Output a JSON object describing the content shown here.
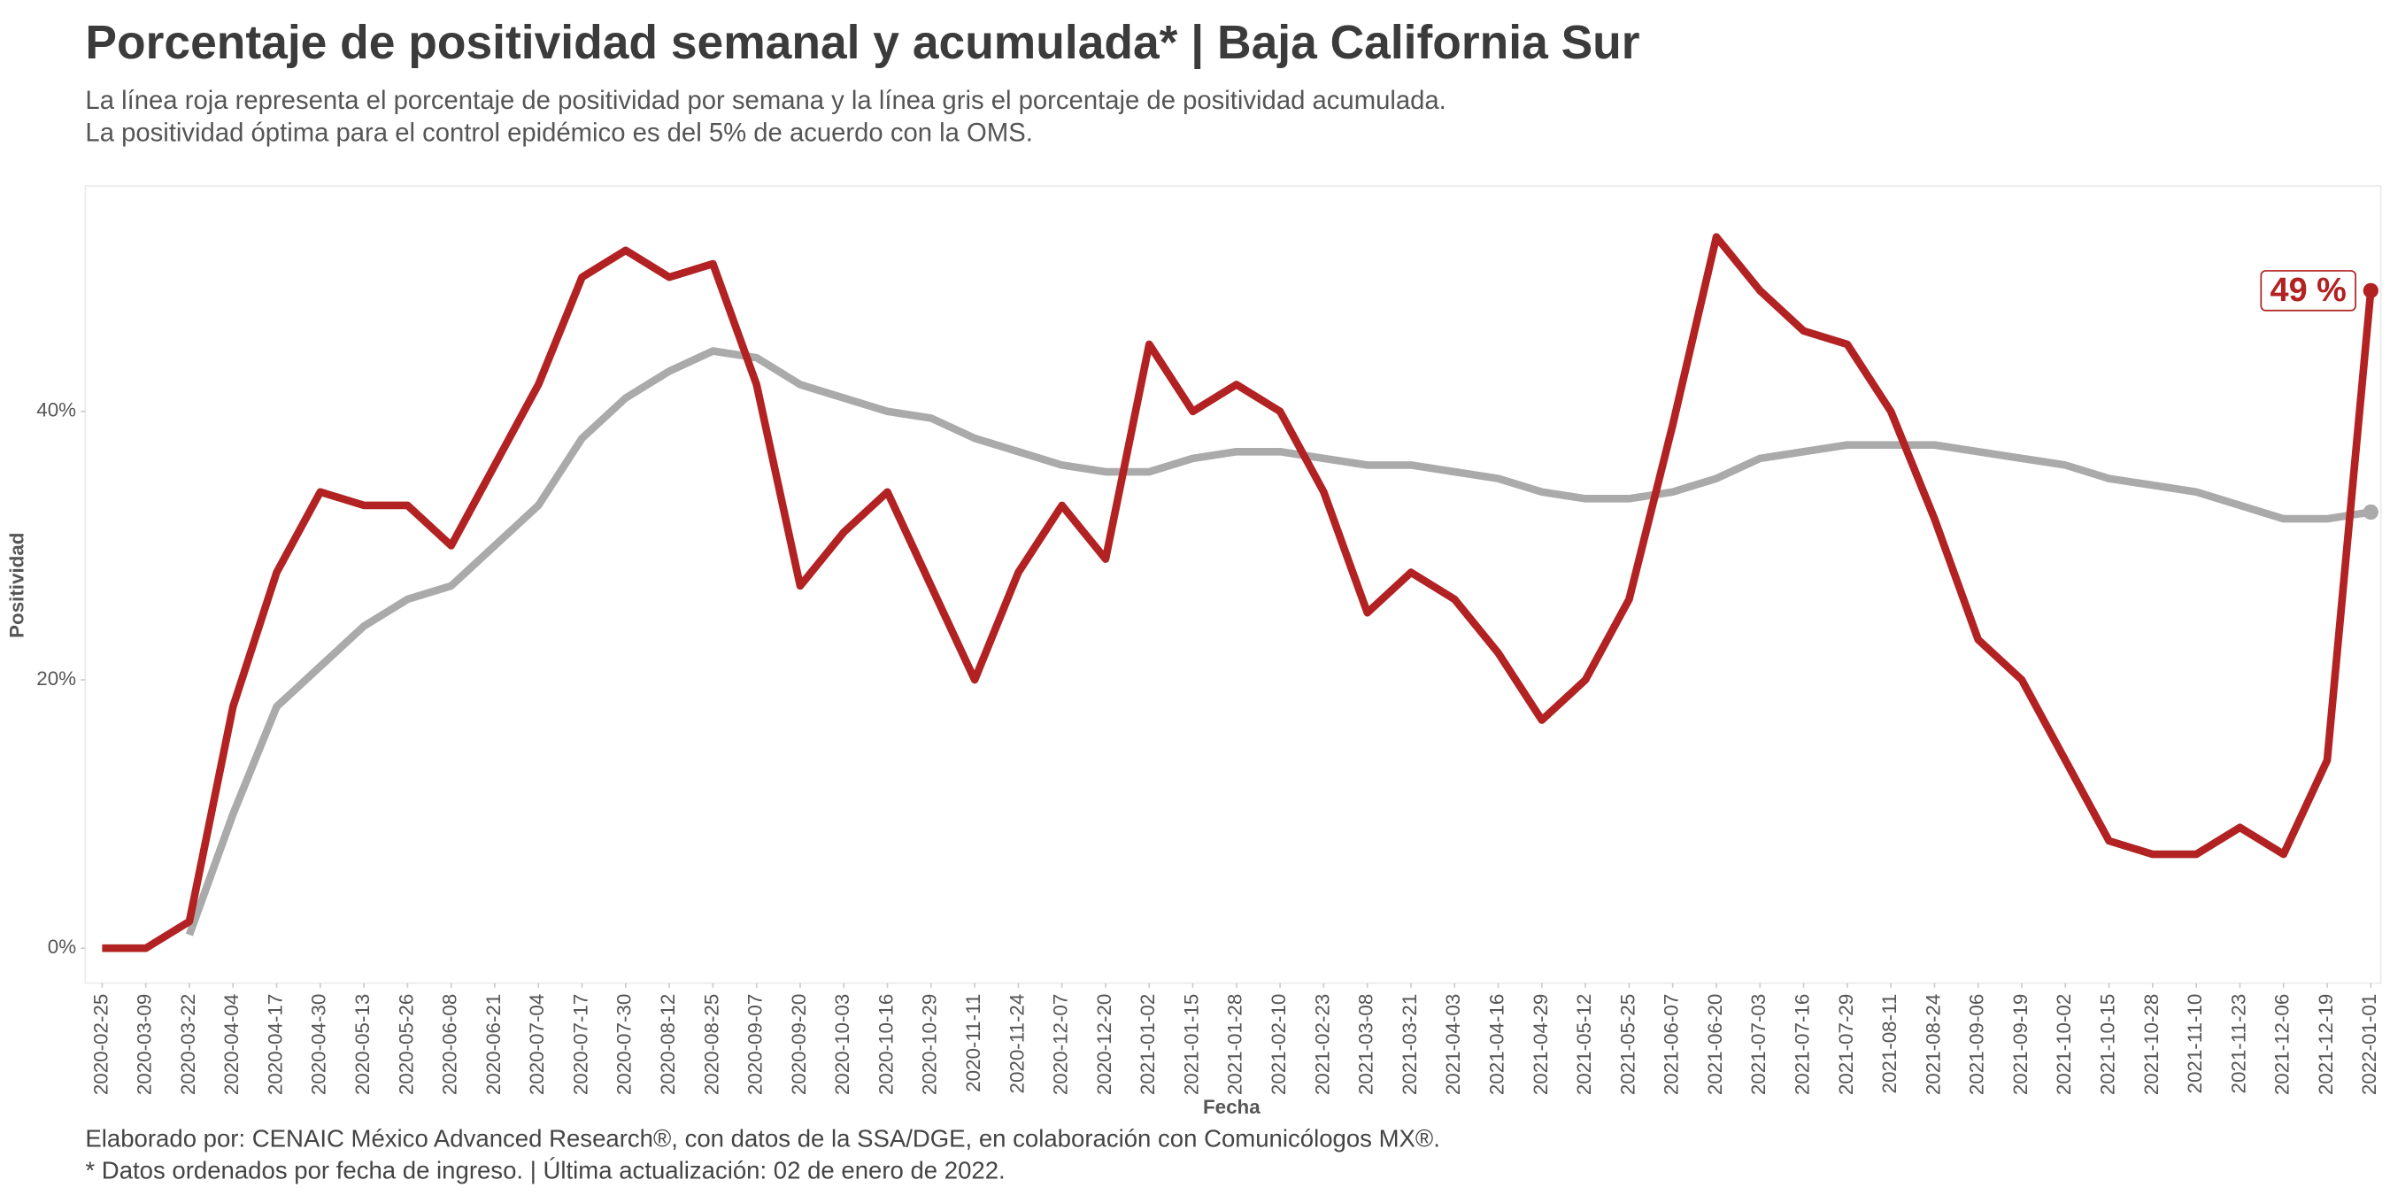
{
  "chart_data": {
    "type": "line",
    "title": "Porcentaje de positividad semanal y acumulada* | Baja California Sur",
    "subtitle": [
      "La línea roja representa el porcentaje de positividad por semana y la línea gris el porcentaje de positividad acumulada.",
      "La positividad óptima para el control epidémico es del 5% de acuerdo con la OMS."
    ],
    "x_label": "Fecha",
    "y_label": "Positividad",
    "footer": [
      "Elaborado por: CENAIC México Advanced Research®, con datos de la SSA/DGE, en colaboración con Comunicólogos MX®.",
      "* Datos ordenados por fecha de ingreso. | Última actualización: 02 de enero de 2022."
    ],
    "x": [
      "2020-02-25",
      "2020-03-09",
      "2020-03-22",
      "2020-04-04",
      "2020-04-17",
      "2020-04-30",
      "2020-05-13",
      "2020-05-26",
      "2020-06-08",
      "2020-06-21",
      "2020-07-04",
      "2020-07-17",
      "2020-07-30",
      "2020-08-12",
      "2020-08-25",
      "2020-09-07",
      "2020-09-20",
      "2020-10-03",
      "2020-10-16",
      "2020-10-29",
      "2020-11-11",
      "2020-11-24",
      "2020-12-07",
      "2020-12-20",
      "2021-01-02",
      "2021-01-15",
      "2021-01-28",
      "2021-02-10",
      "2021-02-23",
      "2021-03-08",
      "2021-03-21",
      "2021-04-03",
      "2021-04-16",
      "2021-04-29",
      "2021-05-12",
      "2021-05-25",
      "2021-06-07",
      "2021-06-20",
      "2021-07-03",
      "2021-07-16",
      "2021-07-29",
      "2021-08-11",
      "2021-08-24",
      "2021-09-06",
      "2021-09-19",
      "2021-10-02",
      "2021-10-15",
      "2021-10-28",
      "2021-11-10",
      "2021-11-23",
      "2021-12-06",
      "2021-12-19",
      "2022-01-01"
    ],
    "series": [
      {
        "name": "Positividad semanal",
        "color": "#b22222",
        "values": [
          0,
          0,
          2,
          18,
          28,
          34,
          33,
          33,
          30,
          36,
          42,
          50,
          52,
          50,
          51,
          42,
          27,
          31,
          34,
          27,
          20,
          28,
          33,
          29,
          45,
          40,
          42,
          40,
          34,
          25,
          28,
          26,
          22,
          17,
          20,
          26,
          39,
          53,
          49,
          46,
          45,
          40,
          32,
          23,
          20,
          14,
          8,
          7,
          7,
          9,
          7,
          14,
          49
        ],
        "value_labels": [
          null,
          null,
          null,
          null,
          null,
          null,
          null,
          null,
          null,
          null,
          null,
          null,
          null,
          null,
          null,
          null,
          null,
          null,
          null,
          null,
          null,
          null,
          null,
          null,
          null,
          null,
          null,
          null,
          null,
          null,
          null,
          null,
          null,
          null,
          null,
          null,
          null,
          null,
          null,
          null,
          null,
          null,
          null,
          null,
          null,
          null,
          null,
          null,
          null,
          null,
          null,
          null,
          "49 %"
        ]
      },
      {
        "name": "Positividad acumulada",
        "color": "#aaaaaa",
        "values": [
          null,
          null,
          1,
          10,
          18,
          21,
          24,
          26,
          27,
          30,
          33,
          38,
          41,
          43,
          44.5,
          44,
          42,
          41,
          40,
          39.5,
          38,
          37,
          36,
          35.5,
          35.5,
          36.5,
          37,
          37,
          36.5,
          36,
          36,
          35.5,
          35,
          34,
          33.5,
          33.5,
          34,
          35,
          36.5,
          37,
          37.5,
          37.5,
          37.5,
          37,
          36.5,
          36,
          35,
          34.5,
          34,
          33,
          32,
          32,
          32.5
        ]
      }
    ],
    "xlim": [
      "2020-02-20",
      "2022-01-04"
    ],
    "xticks": [
      "2020-02-25",
      "2020-03-09",
      "2020-03-22",
      "2020-04-04",
      "2020-04-17",
      "2020-04-30",
      "2020-05-13",
      "2020-05-26",
      "2020-06-08",
      "2020-06-21",
      "2020-07-04",
      "2020-07-17",
      "2020-07-30",
      "2020-08-12",
      "2020-08-25",
      "2020-09-07",
      "2020-09-20",
      "2020-10-03",
      "2020-10-16",
      "2020-10-29",
      "2020-11-11",
      "2020-11-24",
      "2020-12-07",
      "2020-12-20",
      "2021-01-02",
      "2021-01-15",
      "2021-01-28",
      "2021-02-10",
      "2021-02-23",
      "2021-03-08",
      "2021-03-21",
      "2021-04-03",
      "2021-04-16",
      "2021-04-29",
      "2021-05-12",
      "2021-05-25",
      "2021-06-07",
      "2021-06-20",
      "2021-07-03",
      "2021-07-16",
      "2021-07-29",
      "2021-08-11",
      "2021-08-24",
      "2021-09-06",
      "2021-09-19",
      "2021-10-02",
      "2021-10-15",
      "2021-10-28",
      "2021-11-10",
      "2021-11-23",
      "2021-12-06",
      "2021-12-19",
      "2022-01-01"
    ],
    "ylim": [
      -2.6,
      56.8
    ],
    "yticks": [
      {
        "value": 0,
        "label": "0%"
      },
      {
        "value": 20,
        "label": "20%"
      },
      {
        "value": 40,
        "label": "40%"
      }
    ]
  }
}
